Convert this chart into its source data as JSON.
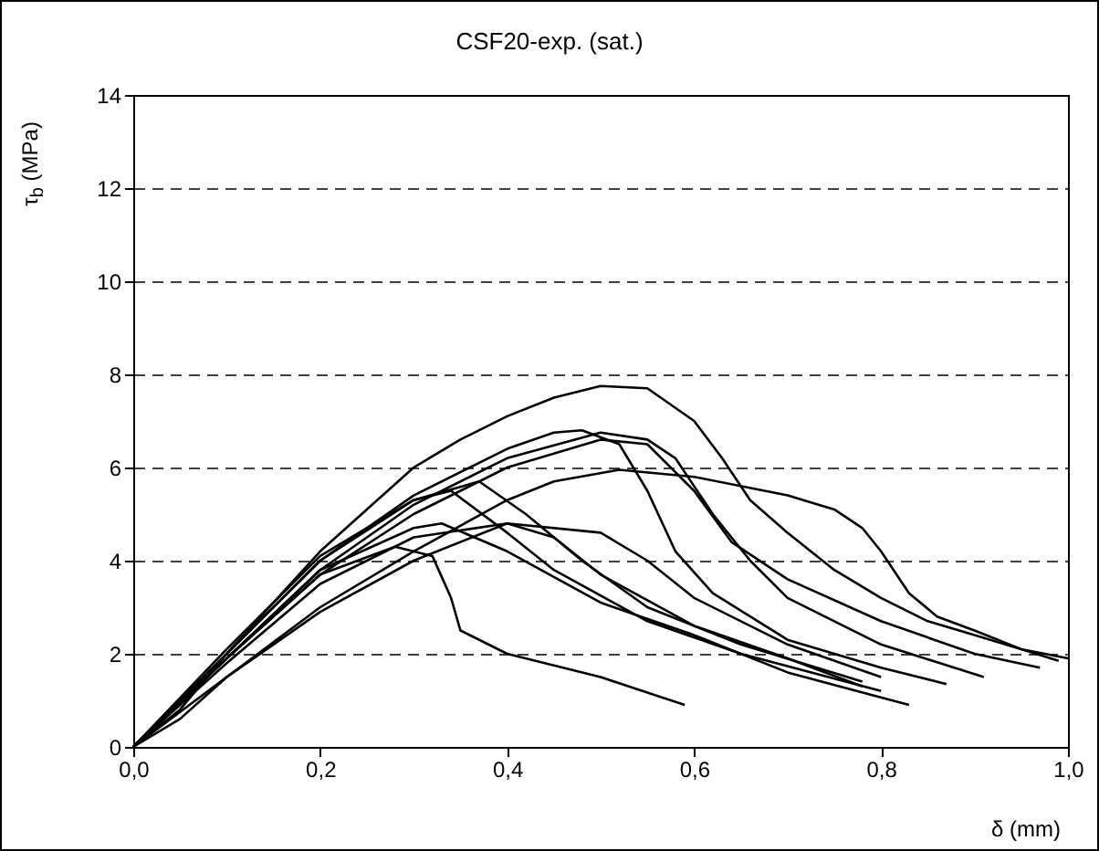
{
  "chart_data": {
    "type": "line",
    "title": "CSF20-exp. (sat.)",
    "xlabel": "δ (mm)",
    "ylabel": "τ$_{b}$ (MPa)",
    "xlim": [
      0,
      1
    ],
    "ylim": [
      0,
      14
    ],
    "xticks": [
      {
        "value": 0,
        "label": "0,0"
      },
      {
        "value": 0.2,
        "label": "0,2"
      },
      {
        "value": 0.4,
        "label": "0,4"
      },
      {
        "value": 0.6,
        "label": "0,6"
      },
      {
        "value": 0.8,
        "label": "0,8"
      },
      {
        "value": 1,
        "label": "1,0"
      }
    ],
    "yticks": [
      0,
      2,
      4,
      6,
      8,
      10,
      12,
      14
    ],
    "grid": "y",
    "legend": false,
    "marker": "none",
    "line_style": "solid",
    "series": [
      {
        "color": "#000000",
        "x": [
          0,
          0.05,
          0.1,
          0.2,
          0.3,
          0.35,
          0.4,
          0.45,
          0.5,
          0.55,
          0.6,
          0.63,
          0.66,
          0.7,
          0.75,
          0.8,
          0.85,
          0.9,
          0.95,
          1.0
        ],
        "values": [
          0,
          0.8,
          2.0,
          4.2,
          6.0,
          6.6,
          7.1,
          7.5,
          7.75,
          7.7,
          7.0,
          6.2,
          5.3,
          4.6,
          3.8,
          3.2,
          2.7,
          2.4,
          2.1,
          1.9
        ]
      },
      {
        "color": "#000000",
        "x": [
          0,
          0.05,
          0.1,
          0.2,
          0.3,
          0.4,
          0.45,
          0.52,
          0.6,
          0.7,
          0.75,
          0.78,
          0.8,
          0.83,
          0.86,
          0.9,
          0.95,
          0.99
        ],
        "values": [
          0,
          0.6,
          1.5,
          3.0,
          4.2,
          5.3,
          5.7,
          5.95,
          5.8,
          5.4,
          5.1,
          4.7,
          4.2,
          3.3,
          2.8,
          2.5,
          2.1,
          1.85
        ]
      },
      {
        "color": "#000000",
        "x": [
          0,
          0.1,
          0.2,
          0.3,
          0.4,
          0.45,
          0.48,
          0.52,
          0.55,
          0.58,
          0.62,
          0.7,
          0.8,
          0.87
        ],
        "values": [
          0,
          2.0,
          4.0,
          5.4,
          6.4,
          6.75,
          6.8,
          6.5,
          5.5,
          4.2,
          3.3,
          2.3,
          1.7,
          1.35
        ]
      },
      {
        "color": "#000000",
        "x": [
          0,
          0.1,
          0.2,
          0.3,
          0.4,
          0.5,
          0.55,
          0.58,
          0.62,
          0.66,
          0.7,
          0.8,
          0.91
        ],
        "values": [
          0,
          1.9,
          3.8,
          5.2,
          6.2,
          6.75,
          6.6,
          6.2,
          5.0,
          4.0,
          3.2,
          2.2,
          1.5
        ]
      },
      {
        "color": "#000000",
        "x": [
          0,
          0.1,
          0.2,
          0.3,
          0.4,
          0.5,
          0.55,
          0.6,
          0.64,
          0.7,
          0.8,
          0.9,
          0.97
        ],
        "values": [
          0,
          1.9,
          3.7,
          5.0,
          6.0,
          6.6,
          6.5,
          5.5,
          4.4,
          3.6,
          2.7,
          2.0,
          1.7
        ]
      },
      {
        "color": "#000000",
        "x": [
          0,
          0.1,
          0.2,
          0.3,
          0.37,
          0.42,
          0.48,
          0.55,
          0.65,
          0.78
        ],
        "values": [
          0,
          2.0,
          4.0,
          5.3,
          5.7,
          5.0,
          4.0,
          3.0,
          2.2,
          1.4
        ]
      },
      {
        "color": "#000000",
        "x": [
          0,
          0.1,
          0.2,
          0.3,
          0.34,
          0.4,
          0.45,
          0.55,
          0.65,
          0.8
        ],
        "values": [
          0,
          2.1,
          4.1,
          5.3,
          5.5,
          4.6,
          3.8,
          2.7,
          2.0,
          1.2
        ]
      },
      {
        "color": "#000000",
        "x": [
          0,
          0.1,
          0.2,
          0.3,
          0.33,
          0.4,
          0.5,
          0.6,
          0.7,
          0.83
        ],
        "values": [
          0,
          1.9,
          3.8,
          4.7,
          4.8,
          4.2,
          3.1,
          2.4,
          1.6,
          0.9
        ]
      },
      {
        "color": "#000000",
        "x": [
          0,
          0.1,
          0.2,
          0.3,
          0.4,
          0.45,
          0.5,
          0.6,
          0.7,
          0.78
        ],
        "values": [
          0,
          1.8,
          3.5,
          4.5,
          4.8,
          4.5,
          3.7,
          2.6,
          1.9,
          1.3
        ]
      },
      {
        "color": "#000000",
        "x": [
          0,
          0.1,
          0.2,
          0.28,
          0.32,
          0.34,
          0.35,
          0.4,
          0.5,
          0.59
        ],
        "values": [
          0,
          1.9,
          3.7,
          4.3,
          4.1,
          3.2,
          2.5,
          2.0,
          1.5,
          0.9
        ]
      },
      {
        "color": "#000000",
        "x": [
          0,
          0.1,
          0.2,
          0.3,
          0.4,
          0.5,
          0.55,
          0.6,
          0.7,
          0.8
        ],
        "values": [
          0,
          1.5,
          2.9,
          4.0,
          4.8,
          4.6,
          4.0,
          3.2,
          2.2,
          1.5
        ]
      }
    ]
  }
}
